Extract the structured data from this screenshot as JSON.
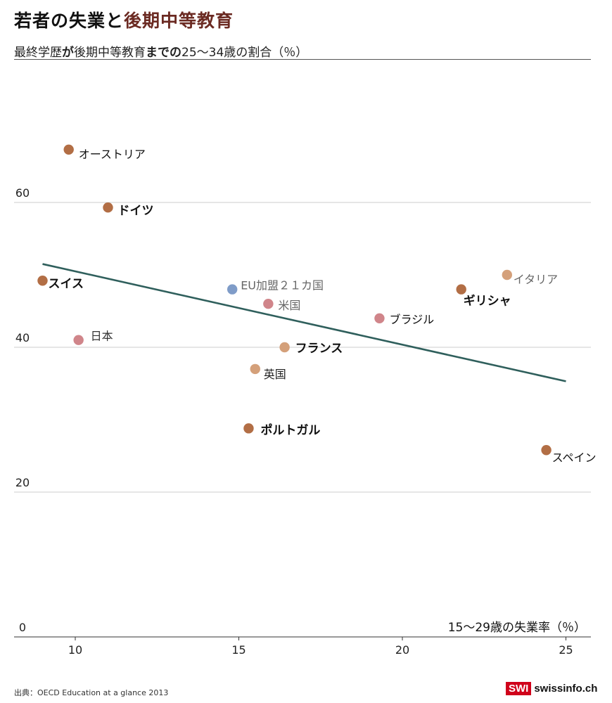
{
  "header": {
    "title_part1": "若者の失業と",
    "title_part2": "後期中等教育",
    "subtitle_part1": "最終学歴",
    "subtitle_part2": "が",
    "subtitle_part3": "後期中等教育",
    "subtitle_part4": "までの",
    "subtitle_part5": "25～34歳の割合（％）"
  },
  "footer": {
    "source": "出典：OECD Education at a glance 2013",
    "brand_badge": "SWI",
    "brand_site": "swissinfo.ch"
  },
  "colors": {
    "dark_orange": "#b26e45",
    "light_orange": "#d4a07a",
    "pink": "#d0858a",
    "blue": "#7f9cc8",
    "trend": "#2f5f5c",
    "grid": "#cccccc",
    "title_highlight": "#6b2a22"
  },
  "chart_data": {
    "type": "scatter",
    "title": "若者の失業と後期中等教育",
    "xlabel": "15～29歳の失業率（％）",
    "ylabel": "最終学歴が後期中等教育までの25～34歳の割合（％）",
    "xlim": [
      8.2,
      25.8
    ],
    "ylim": [
      0,
      73
    ],
    "xticks": [
      10,
      15,
      20,
      25
    ],
    "yticks": [
      0,
      20,
      40,
      60
    ],
    "grid": "horizontal",
    "points": [
      {
        "label": "オーストリア",
        "x": 9.8,
        "y": 67.3,
        "color": "dark_orange",
        "bold": false
      },
      {
        "label": "ドイツ",
        "x": 11.0,
        "y": 59.3,
        "color": "dark_orange",
        "bold": true
      },
      {
        "label": "スイス",
        "x": 9.0,
        "y": 49.2,
        "color": "dark_orange",
        "bold": true
      },
      {
        "label": "日本",
        "x": 10.1,
        "y": 41.0,
        "color": "pink",
        "bold": false
      },
      {
        "label": "EU加盟２１カ国",
        "x": 14.8,
        "y": 48.0,
        "color": "blue",
        "bold": false
      },
      {
        "label": "米国",
        "x": 15.9,
        "y": 46.0,
        "color": "pink",
        "bold": false
      },
      {
        "label": "フランス",
        "x": 16.4,
        "y": 40.0,
        "color": "light_orange",
        "bold": true
      },
      {
        "label": "英国",
        "x": 15.5,
        "y": 37.0,
        "color": "light_orange",
        "bold": false
      },
      {
        "label": "ポルトガル",
        "x": 15.3,
        "y": 28.8,
        "color": "dark_orange",
        "bold": true
      },
      {
        "label": "ブラジル",
        "x": 19.3,
        "y": 44.0,
        "color": "pink",
        "bold": false
      },
      {
        "label": "イタリア",
        "x": 23.2,
        "y": 50.0,
        "color": "light_orange",
        "bold": false
      },
      {
        "label": "ギリシャ",
        "x": 21.8,
        "y": 48.0,
        "color": "dark_orange",
        "bold": true
      },
      {
        "label": "スペイン",
        "x": 24.4,
        "y": 25.8,
        "color": "dark_orange",
        "bold": false
      }
    ],
    "trendline": {
      "x": [
        9.0,
        25.0
      ],
      "y": [
        51.5,
        35.3
      ]
    }
  }
}
